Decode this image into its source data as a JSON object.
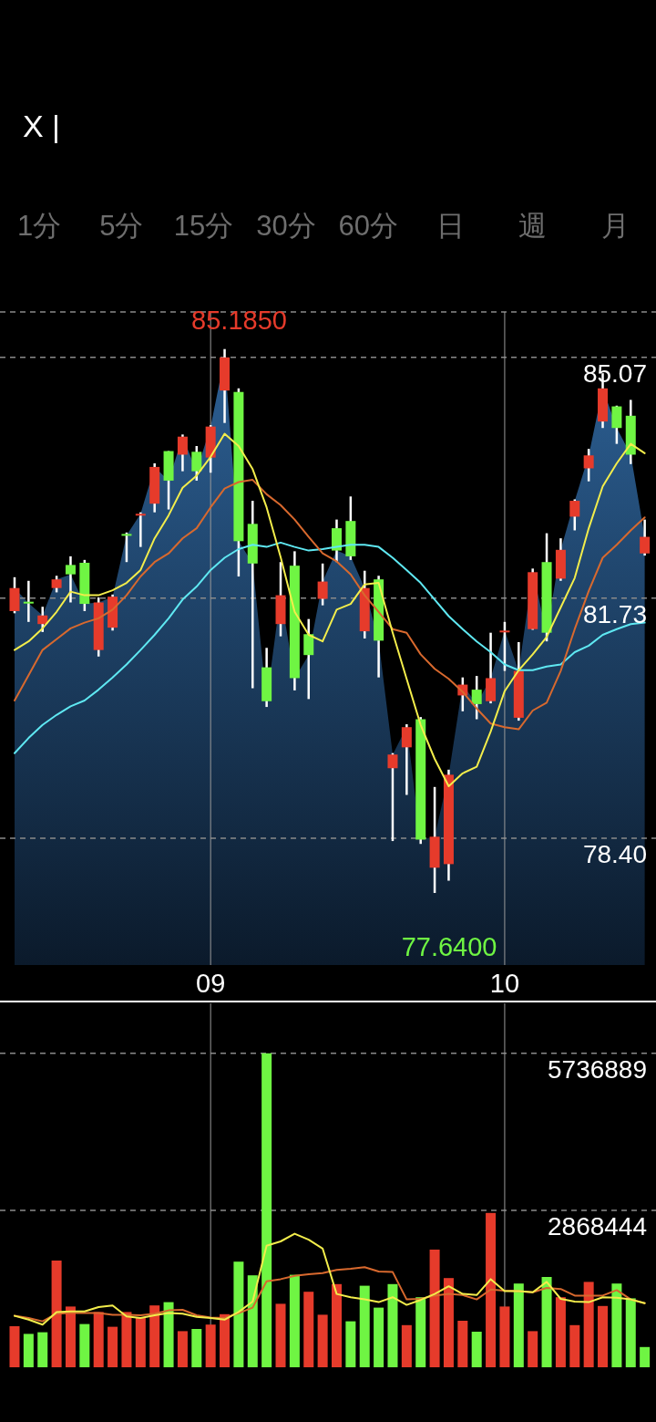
{
  "chart_data": [
    {
      "type": "candlestick",
      "annotations": [
        "X |",
        "1分",
        "5分",
        "15分",
        "30分",
        "60分",
        "日",
        "週",
        "月",
        "85.1850",
        "77.6400"
      ],
      "categories": [
        null,
        null,
        null,
        null,
        null,
        null,
        null,
        null,
        null,
        null,
        null,
        null,
        null,
        null,
        "09",
        null,
        null,
        null,
        null,
        null,
        null,
        null,
        null,
        null,
        null,
        null,
        null,
        null,
        null,
        null,
        null,
        null,
        null,
        null,
        null,
        "10",
        null,
        null,
        null,
        null,
        null,
        null,
        null,
        null,
        null,
        null
      ],
      "ohlc": [
        [
          81.55,
          82.02,
          81.52,
          81.87
        ],
        [
          81.68,
          81.97,
          81.4,
          81.66
        ],
        [
          81.37,
          81.61,
          81.26,
          81.49
        ],
        [
          81.87,
          82.04,
          81.81,
          81.99
        ],
        [
          82.19,
          82.31,
          81.67,
          82.06
        ],
        [
          82.22,
          82.26,
          81.55,
          81.65
        ],
        [
          81.01,
          81.74,
          80.92,
          81.67
        ],
        [
          81.32,
          81.78,
          81.28,
          81.75
        ],
        [
          82.62,
          82.64,
          82.23,
          82.6
        ],
        [
          82.88,
          82.92,
          82.44,
          82.9
        ],
        [
          83.04,
          83.6,
          82.92,
          83.55
        ],
        [
          83.77,
          83.77,
          82.96,
          83.36
        ],
        [
          83.72,
          84.0,
          83.49,
          83.97
        ],
        [
          83.76,
          83.84,
          83.36,
          83.49
        ],
        [
          83.68,
          84.13,
          83.47,
          84.11
        ],
        [
          84.61,
          85.185,
          84.16,
          85.07
        ],
        [
          84.59,
          84.64,
          82.03,
          82.52
        ],
        [
          82.76,
          83.08,
          80.48,
          82.21
        ],
        [
          80.77,
          81.04,
          80.22,
          80.3
        ],
        [
          81.37,
          82.23,
          81.2,
          81.77
        ],
        [
          82.18,
          82.38,
          80.45,
          80.62
        ],
        [
          81.23,
          81.44,
          80.33,
          80.94
        ],
        [
          81.72,
          82.21,
          81.63,
          81.96
        ],
        [
          82.7,
          82.82,
          82.23,
          82.39
        ],
        [
          82.8,
          83.14,
          82.26,
          82.31
        ],
        [
          81.27,
          82.11,
          81.17,
          81.87
        ],
        [
          81.99,
          82.04,
          80.63,
          81.14
        ],
        [
          79.37,
          79.58,
          78.36,
          79.56
        ],
        [
          79.66,
          79.98,
          79.0,
          79.94
        ],
        [
          80.05,
          80.08,
          78.32,
          78.38
        ],
        [
          77.99,
          79.11,
          77.64,
          78.42
        ],
        [
          78.04,
          79.35,
          77.81,
          79.28
        ],
        [
          80.38,
          80.63,
          80.16,
          80.53
        ],
        [
          80.46,
          80.65,
          80.05,
          80.26
        ],
        [
          80.3,
          81.25,
          80.27,
          80.62
        ],
        [
          81.26,
          81.4,
          80.72,
          81.28
        ],
        [
          80.07,
          81.12,
          80.03,
          80.72
        ],
        [
          81.3,
          82.14,
          81.29,
          82.09
        ],
        [
          82.23,
          82.63,
          81.13,
          81.25
        ],
        [
          82.0,
          82.56,
          81.97,
          82.4
        ],
        [
          82.86,
          83.1,
          82.67,
          83.08
        ],
        [
          83.53,
          83.8,
          83.35,
          83.71
        ],
        [
          84.18,
          84.85,
          84.09,
          84.64
        ],
        [
          84.39,
          84.4,
          83.87,
          84.09
        ],
        [
          84.26,
          84.48,
          83.59,
          83.72
        ],
        [
          82.35,
          82.82,
          82.32,
          82.58
        ]
      ],
      "colors": [
        "#e63b2b",
        "#6ff543",
        "#e63b2b",
        "#e63b2b",
        "#6ff543",
        "#6ff543",
        "#e63b2b",
        "#e63b2b",
        "#6ff543",
        "#e63b2b",
        "#e63b2b",
        "#6ff543",
        "#e63b2b",
        "#6ff543",
        "#e63b2b",
        "#e63b2b",
        "#6ff543",
        "#6ff543",
        "#6ff543",
        "#e63b2b",
        "#6ff543",
        "#6ff543",
        "#e63b2b",
        "#6ff543",
        "#6ff543",
        "#e63b2b",
        "#6ff543",
        "#e63b2b",
        "#e63b2b",
        "#6ff543",
        "#e63b2b",
        "#e63b2b",
        "#e63b2b",
        "#6ff543",
        "#e63b2b",
        "#e63b2b",
        "#e63b2b",
        "#e63b2b",
        "#6ff543",
        "#e63b2b",
        "#e63b2b",
        "#e63b2b",
        "#e63b2b",
        "#6ff543",
        "#6ff543",
        "#e63b2b"
      ],
      "series": [
        {
          "type": "area",
          "color": "#2c5f93",
          "values": [
            81.87,
            81.66,
            81.49,
            81.99,
            82.06,
            81.65,
            81.67,
            81.75,
            82.6,
            82.9,
            83.55,
            83.36,
            83.97,
            83.49,
            84.11,
            85.07,
            82.52,
            82.21,
            80.3,
            81.77,
            80.62,
            80.94,
            81.96,
            82.39,
            82.31,
            81.87,
            81.14,
            79.56,
            79.94,
            78.38,
            78.42,
            79.28,
            80.53,
            80.26,
            80.62,
            81.28,
            80.72,
            82.09,
            81.25,
            82.4,
            83.08,
            83.71,
            84.64,
            84.09,
            83.72,
            82.58
          ]
        },
        {
          "type": "line",
          "color": "#5fe8f2",
          "values": [
            79.58,
            79.79,
            79.97,
            80.11,
            80.23,
            80.31,
            80.46,
            80.63,
            80.81,
            81.01,
            81.22,
            81.45,
            81.71,
            81.89,
            82.12,
            82.29,
            82.41,
            82.47,
            82.44,
            82.5,
            82.44,
            82.39,
            82.41,
            82.44,
            82.47,
            82.47,
            82.44,
            82.29,
            82.12,
            81.94,
            81.71,
            81.48,
            81.3,
            81.13,
            80.98,
            80.81,
            80.73,
            80.73,
            80.78,
            80.81,
            80.98,
            81.07,
            81.22,
            81.3,
            81.37,
            81.39
          ]
        },
        {
          "type": "line",
          "color": "#d8692e",
          "values": [
            80.31,
            80.66,
            81.01,
            81.16,
            81.31,
            81.39,
            81.45,
            81.57,
            81.77,
            82.03,
            82.23,
            82.35,
            82.56,
            82.7,
            82.99,
            83.25,
            83.34,
            83.37,
            83.17,
            83.02,
            82.82,
            82.58,
            82.35,
            82.24,
            82.06,
            81.77,
            81.54,
            81.3,
            81.25,
            80.95,
            80.75,
            80.61,
            80.43,
            80.2,
            79.99,
            79.94,
            79.91,
            80.17,
            80.28,
            80.72,
            81.3,
            81.83,
            82.29,
            82.47,
            82.67,
            82.85
          ]
        },
        {
          "type": "line",
          "color": "#f3ed4b",
          "values": [
            81.01,
            81.13,
            81.31,
            81.54,
            81.82,
            81.77,
            81.77,
            81.84,
            81.94,
            82.12,
            82.56,
            82.88,
            83.26,
            83.43,
            83.69,
            84.01,
            83.84,
            83.52,
            82.99,
            82.3,
            81.54,
            81.22,
            81.13,
            81.57,
            81.65,
            81.92,
            81.94,
            81.25,
            80.61,
            79.97,
            79.5,
            79.12,
            79.3,
            79.39,
            79.88,
            80.44,
            80.73,
            80.95,
            81.19,
            81.6,
            82.01,
            82.7,
            83.28,
            83.6,
            83.87,
            83.74
          ]
        }
      ],
      "ylim": [
        76.64,
        85.7
      ],
      "yticks": [
        {
          "value": 78.4,
          "label": "78.40"
        },
        {
          "value": 81.73,
          "label": "81.73"
        },
        {
          "value": 85.07,
          "label": "85.07"
        },
        {
          "value": 85.7,
          "label": null
        }
      ],
      "grid": true
    },
    {
      "type": "bar",
      "categories": [
        null,
        null,
        null,
        null,
        null,
        null,
        null,
        null,
        null,
        null,
        null,
        null,
        null,
        null,
        "09",
        null,
        null,
        null,
        null,
        null,
        null,
        null,
        null,
        null,
        null,
        null,
        null,
        null,
        null,
        null,
        null,
        null,
        null,
        null,
        null,
        "10",
        null,
        null,
        null,
        null,
        null,
        null,
        null,
        null,
        null,
        null
      ],
      "tick_labels": "y",
      "series": [
        {
          "type": "bar",
          "colors": [
            "#e63b2b",
            "#6ff543",
            "#6ff543",
            "#e63b2b",
            "#e63b2b",
            "#6ff543",
            "#e63b2b",
            "#e63b2b",
            "#e63b2b",
            "#e63b2b",
            "#e63b2b",
            "#6ff543",
            "#e63b2b",
            "#6ff543",
            "#e63b2b",
            "#e63b2b",
            "#6ff543",
            "#6ff543",
            "#6ff543",
            "#e63b2b",
            "#6ff543",
            "#e63b2b",
            "#e63b2b",
            "#e63b2b",
            "#6ff543",
            "#6ff543",
            "#6ff543",
            "#6ff543",
            "#e63b2b",
            "#6ff543",
            "#e63b2b",
            "#e63b2b",
            "#e63b2b",
            "#6ff543",
            "#e63b2b",
            "#e63b2b",
            "#6ff543",
            "#e63b2b",
            "#6ff543",
            "#e63b2b",
            "#e63b2b",
            "#e63b2b",
            "#e63b2b",
            "#6ff543",
            "#6ff543",
            "#6ff543"
          ],
          "values": [
            750000,
            610000,
            640000,
            1950000,
            1110000,
            790000,
            1010000,
            740000,
            1010000,
            900000,
            1130000,
            1190000,
            660000,
            700000,
            780000,
            970000,
            1930000,
            1680000,
            5736889,
            1160000,
            1690000,
            1380000,
            960000,
            1520000,
            840000,
            1490000,
            1090000,
            1520000,
            770000,
            1280000,
            2150000,
            1630000,
            850000,
            650000,
            2820000,
            1110000,
            1530000,
            660000,
            1650000,
            1280000,
            770000,
            1560000,
            1120000,
            1530000,
            1260000,
            370000
          ]
        },
        {
          "type": "line",
          "color": "#d8692e",
          "values": [
            940000,
            900000,
            840000,
            980000,
            990000,
            990000,
            990000,
            960000,
            960000,
            950000,
            980000,
            1040000,
            1050000,
            950000,
            910000,
            900000,
            990000,
            1090000,
            1570000,
            1610000,
            1670000,
            1700000,
            1720000,
            1780000,
            1800000,
            1830000,
            1750000,
            1740000,
            1240000,
            1250000,
            1310000,
            1340000,
            1320000,
            1240000,
            1420000,
            1400000,
            1390000,
            1370000,
            1450000,
            1430000,
            1310000,
            1310000,
            1310000,
            1410000,
            1240000,
            1170000
          ]
        },
        {
          "type": "line",
          "color": "#f3ed4b",
          "values": [
            940000,
            870000,
            780000,
            1010000,
            1020000,
            1020000,
            1100000,
            1130000,
            930000,
            900000,
            950000,
            990000,
            980000,
            920000,
            900000,
            870000,
            1010000,
            1200000,
            2220000,
            2300000,
            2440000,
            2330000,
            2170000,
            1340000,
            1280000,
            1240000,
            1190000,
            1280000,
            1140000,
            1230000,
            1340000,
            1480000,
            1340000,
            1320000,
            1610000,
            1390000,
            1390000,
            1370000,
            1560000,
            1250000,
            1200000,
            1190000,
            1280000,
            1270000,
            1240000,
            1170000
          ]
        }
      ],
      "ylim": [
        0,
        6650000
      ],
      "yticks": [
        2868444,
        5736889
      ],
      "grid": true
    }
  ]
}
